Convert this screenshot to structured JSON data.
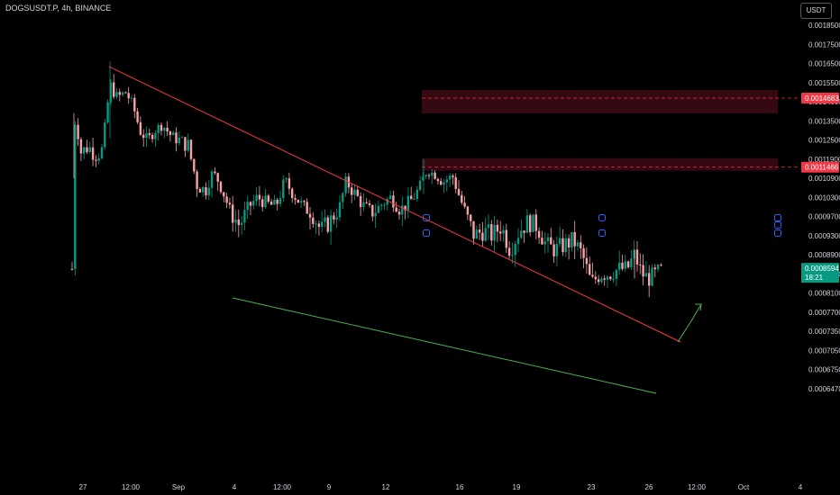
{
  "header": {
    "symbol": "DOGSUSDT.P, 4h, BINANCE",
    "currency_button": "USDT"
  },
  "chart_data": {
    "type": "candlestick",
    "title": "DOGSUSDT.P, 4h, BINANCE",
    "y_scale": "log",
    "y_ticks": [
      "0.0018500",
      "0.0017500",
      "0.0016500",
      "0.0015500",
      "0.0014500",
      "0.0013500",
      "0.0012500",
      "0.0011900",
      "0.0010900",
      "0.0010300",
      "0.0009700",
      "0.0009300",
      "0.0008900",
      "0.0008500",
      "0.0008100",
      "0.0007700",
      "0.0007350",
      "0.0007050",
      "0.0006750",
      "0.0006470"
    ],
    "x_ticks": [
      "27",
      "12:00",
      "Sep",
      "4",
      "12:00",
      "9",
      "12",
      "16",
      "19",
      "23",
      "26",
      "12:00",
      "Oct",
      "4"
    ],
    "price_tags": [
      {
        "label": "0.0014683",
        "color": "#f23645"
      },
      {
        "label": "0.0011466",
        "color": "#f23645"
      }
    ],
    "current": {
      "price": "0.0008594",
      "countdown": "18:21",
      "color": "#089981"
    },
    "colors": {
      "up": "#089981",
      "down": "#f7a1a8",
      "resistance_line": "#f23645",
      "support_line": "#4caf50",
      "zone": "#3a0a14"
    }
  }
}
